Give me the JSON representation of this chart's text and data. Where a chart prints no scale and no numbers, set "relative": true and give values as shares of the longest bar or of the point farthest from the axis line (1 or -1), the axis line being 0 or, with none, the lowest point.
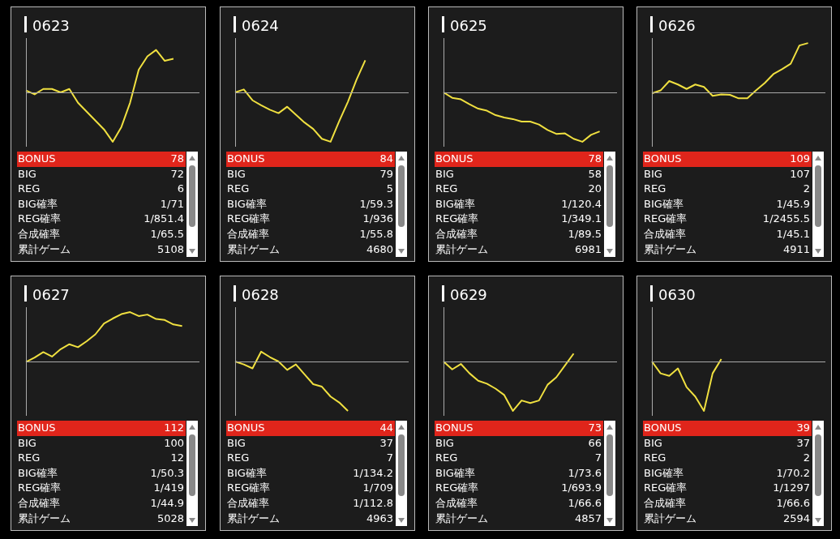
{
  "chart_data": [
    {
      "type": "line",
      "title": "0623",
      "relative": true,
      "legend": false,
      "categories": [
        null,
        null,
        null,
        null,
        null,
        null,
        null,
        null,
        null,
        null,
        null,
        null,
        null,
        null,
        null,
        null,
        null,
        null,
        null,
        null,
        null
      ],
      "series": [
        {
          "color": "#f0e040",
          "values": [
            0.04,
            -0.04,
            0.07,
            0.07,
            0,
            0.07,
            -0.21,
            -0.39,
            -0.57,
            -0.75,
            -1,
            -0.7,
            -0.21,
            0.46,
            0.73,
            0.86,
            0.64,
            0.68,
            null,
            null,
            null
          ]
        }
      ],
      "annotations": [
        "BONUS",
        "78",
        "BIG",
        "72",
        "REG",
        "6",
        "BIG確率",
        "1/71",
        "REG確率",
        "1/851.4",
        "合成確率",
        "1/65.5",
        "累計ゲーム",
        "5108"
      ]
    },
    {
      "type": "line",
      "title": "0624",
      "relative": true,
      "legend": false,
      "categories": [
        null,
        null,
        null,
        null,
        null,
        null,
        null,
        null,
        null,
        null,
        null,
        null,
        null,
        null,
        null,
        null,
        null,
        null,
        null,
        null,
        null
      ],
      "series": [
        {
          "color": "#f0e040",
          "values": [
            0,
            0.06,
            -0.16,
            -0.26,
            -0.35,
            -0.42,
            -0.29,
            -0.45,
            -0.61,
            -0.74,
            -0.94,
            -1,
            -0.58,
            -0.19,
            0.26,
            0.65,
            null,
            null,
            null,
            null,
            null
          ]
        }
      ],
      "annotations": [
        "BONUS",
        "84",
        "BIG",
        "79",
        "REG",
        "5",
        "BIG確率",
        "1/59.3",
        "REG確率",
        "1/936",
        "合成確率",
        "1/55.8",
        "累計ゲーム",
        "4680"
      ]
    },
    {
      "type": "line",
      "title": "0625",
      "relative": true,
      "legend": false,
      "categories": [
        null,
        null,
        null,
        null,
        null,
        null,
        null,
        null,
        null,
        null,
        null,
        null,
        null,
        null,
        null,
        null,
        null,
        null,
        null,
        null,
        null
      ],
      "series": [
        {
          "color": "#f0e040",
          "values": [
            0,
            -0.11,
            -0.14,
            -0.24,
            -0.33,
            -0.37,
            -0.46,
            -0.51,
            -0.54,
            -0.59,
            -0.59,
            -0.65,
            -0.76,
            -0.84,
            -0.83,
            -0.94,
            -1,
            -0.86,
            -0.79,
            null,
            null
          ]
        }
      ],
      "annotations": [
        "BONUS",
        "78",
        "BIG",
        "58",
        "REG",
        "20",
        "BIG確率",
        "1/120.4",
        "REG確率",
        "1/349.1",
        "合成確率",
        "1/89.5",
        "累計ゲーム",
        "6981"
      ]
    },
    {
      "type": "line",
      "title": "0626",
      "relative": true,
      "legend": false,
      "categories": [
        null,
        null,
        null,
        null,
        null,
        null,
        null,
        null,
        null,
        null,
        null,
        null,
        null,
        null,
        null,
        null,
        null,
        null,
        null,
        null,
        null
      ],
      "series": [
        {
          "color": "#f0e040",
          "values": [
            -0.02,
            0.04,
            0.23,
            0.16,
            0.07,
            0.16,
            0.11,
            -0.07,
            -0.04,
            -0.05,
            -0.12,
            -0.12,
            0.04,
            0.19,
            0.37,
            0.47,
            0.58,
            0.95,
            1,
            null,
            null
          ]
        }
      ],
      "annotations": [
        "BONUS",
        "109",
        "BIG",
        "107",
        "REG",
        "2",
        "BIG確率",
        "1/45.9",
        "REG確率",
        "1/2455.5",
        "合成確率",
        "1/45.1",
        "累計ゲーム",
        "4911"
      ]
    },
    {
      "type": "line",
      "title": "0627",
      "relative": true,
      "legend": false,
      "categories": [
        null,
        null,
        null,
        null,
        null,
        null,
        null,
        null,
        null,
        null,
        null,
        null,
        null,
        null,
        null,
        null,
        null,
        null,
        null,
        null,
        null
      ],
      "series": [
        {
          "color": "#f0e040",
          "values": [
            -0.01,
            0.08,
            0.19,
            0.1,
            0.25,
            0.35,
            0.29,
            0.41,
            0.55,
            0.77,
            0.87,
            0.96,
            1,
            0.92,
            0.95,
            0.86,
            0.84,
            0.75,
            0.72,
            null,
            null
          ]
        }
      ],
      "annotations": [
        "BONUS",
        "112",
        "BIG",
        "100",
        "REG",
        "12",
        "BIG確率",
        "1/50.3",
        "REG確率",
        "1/419",
        "合成確率",
        "1/44.9",
        "累計ゲーム",
        "5028"
      ]
    },
    {
      "type": "line",
      "title": "0628",
      "relative": true,
      "legend": false,
      "categories": [
        null,
        null,
        null,
        null,
        null,
        null,
        null,
        null,
        null,
        null,
        null,
        null,
        null,
        null,
        null,
        null,
        null,
        null,
        null,
        null,
        null
      ],
      "series": [
        {
          "color": "#f0e040",
          "values": [
            0,
            -0.06,
            -0.14,
            0.2,
            0.09,
            0,
            -0.17,
            -0.06,
            -0.26,
            -0.46,
            -0.51,
            -0.71,
            -0.83,
            -1,
            null,
            null,
            null,
            null,
            null,
            null,
            null
          ]
        }
      ],
      "annotations": [
        "BONUS",
        "44",
        "BIG",
        "37",
        "REG",
        "7",
        "BIG確率",
        "1/134.2",
        "REG確率",
        "1/709",
        "合成確率",
        "1/112.8",
        "累計ゲーム",
        "4963"
      ]
    },
    {
      "type": "line",
      "title": "0629",
      "relative": true,
      "legend": false,
      "categories": [
        null,
        null,
        null,
        null,
        null,
        null,
        null,
        null,
        null,
        null,
        null,
        null,
        null,
        null,
        null,
        null,
        null,
        null,
        null,
        null,
        null
      ],
      "series": [
        {
          "color": "#f0e040",
          "values": [
            0,
            -0.16,
            -0.05,
            -0.24,
            -0.39,
            -0.45,
            -0.55,
            -0.68,
            -1,
            -0.79,
            -0.84,
            -0.79,
            -0.47,
            -0.32,
            -0.08,
            0.16,
            null,
            null,
            null,
            null,
            null
          ]
        }
      ],
      "annotations": [
        "BONUS",
        "73",
        "BIG",
        "66",
        "REG",
        "7",
        "BIG確率",
        "1/73.6",
        "REG確率",
        "1/693.9",
        "合成確率",
        "1/66.6",
        "累計ゲーム",
        "4857"
      ]
    },
    {
      "type": "line",
      "title": "0630",
      "relative": true,
      "legend": false,
      "categories": [
        null,
        null,
        null,
        null,
        null,
        null,
        null,
        null,
        null,
        null,
        null,
        null,
        null,
        null,
        null,
        null,
        null,
        null,
        null,
        null,
        null
      ],
      "series": [
        {
          "color": "#f0e040",
          "values": [
            0,
            -0.24,
            -0.29,
            -0.14,
            -0.52,
            -0.71,
            -1,
            -0.24,
            0.05,
            null,
            null,
            null,
            null,
            null,
            null,
            null,
            null,
            null,
            null,
            null,
            null
          ]
        }
      ],
      "annotations": [
        "BONUS",
        "39",
        "BIG",
        "37",
        "REG",
        "2",
        "BIG確率",
        "1/70.2",
        "REG確率",
        "1/1297",
        "合成確率",
        "1/66.6",
        "累計ゲーム",
        "2594"
      ]
    }
  ]
}
